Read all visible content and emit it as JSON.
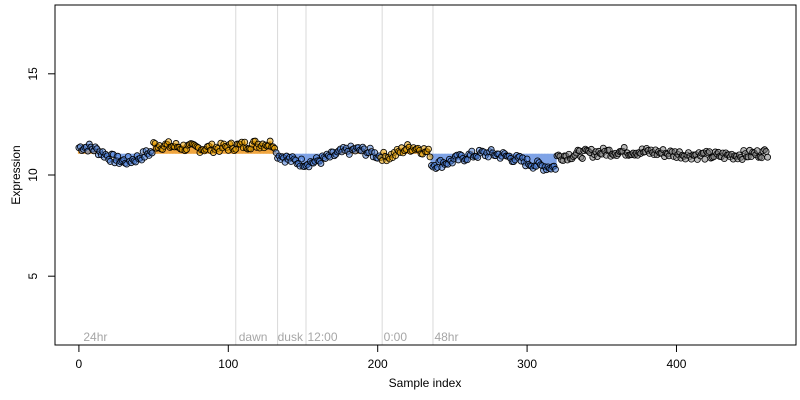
{
  "chart_data": {
    "type": "scatter",
    "title": "",
    "xlabel": "Sample index",
    "ylabel": "Expression",
    "xlim": [
      -16,
      480
    ],
    "ylim": [
      1.6,
      18.4
    ],
    "xticks": [
      0,
      100,
      200,
      300,
      400
    ],
    "yticks": [
      5,
      10,
      15
    ],
    "grid": false,
    "legend": "none",
    "colors": {
      "point_fill_neutral": "#7f7f7f",
      "point_fill_high": "#e69f00",
      "point_fill_low": "#4a7ed6",
      "point_stroke": "#000000",
      "bar_high": "#f0a640",
      "bar_low": "#7fa3e6",
      "vline": "#d9d9d9",
      "annotation": "#a6a6a6"
    },
    "vertical_lines_x": [
      105,
      133,
      152,
      203,
      237
    ],
    "annotations": [
      {
        "text": "24hr",
        "x": 3,
        "y": 2.0
      },
      {
        "text": "dawn",
        "x": 107,
        "y": 2.0
      },
      {
        "text": "dusk",
        "x": 133,
        "y": 2.0
      },
      {
        "text": "12:00",
        "x": 153,
        "y": 2.0
      },
      {
        "text": "0:00",
        "x": 204,
        "y": 2.0
      },
      {
        "text": "48hr",
        "x": 238,
        "y": 2.0
      }
    ],
    "baseline": 11.05,
    "segments": [
      {
        "x0": 0,
        "x1": 50,
        "start": 11.1,
        "end": 10.9,
        "amp": 0.3,
        "phase": 1.0,
        "type": "low"
      },
      {
        "x0": 50,
        "x1": 132,
        "start": 11.4,
        "end": 11.45,
        "amp": 0.1,
        "phase": 2.0,
        "type": "high"
      },
      {
        "x0": 132,
        "x1": 202,
        "start": 11.0,
        "end": 10.85,
        "amp": 0.35,
        "phase": 3.0,
        "type": "low"
      },
      {
        "x0": 202,
        "x1": 236,
        "start": 11.1,
        "end": 11.2,
        "amp": 0.2,
        "phase": 4.0,
        "type": "high"
      },
      {
        "x0": 236,
        "x1": 320,
        "start": 10.8,
        "end": 10.7,
        "amp": 0.3,
        "phase": 5.0,
        "type": "low"
      },
      {
        "x0": 320,
        "x1": 462,
        "start": 10.95,
        "end": 11.15,
        "amp": 0.15,
        "phase": 6.0,
        "type": "neutral"
      }
    ],
    "n_points": 462
  }
}
